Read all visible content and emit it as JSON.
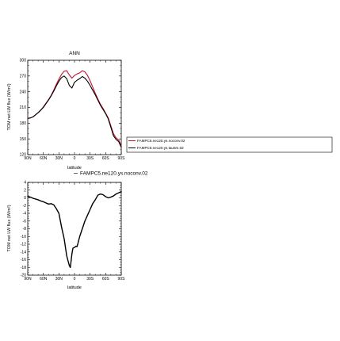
{
  "chart_data": [
    {
      "type": "line",
      "title": "ANN",
      "xlabel": "latitude",
      "ylabel": "TOM net LW flux (W/m²)",
      "xlim": [
        -90,
        90
      ],
      "ylim": [
        120,
        300
      ],
      "xticks": [
        -90,
        -60,
        -30,
        0,
        30,
        60,
        90
      ],
      "xticklabels": [
        "90N",
        "60N",
        "30N",
        "0",
        "30S",
        "60S",
        "90S"
      ],
      "yticks": [
        120,
        150,
        180,
        210,
        240,
        270,
        300
      ],
      "grid": false,
      "legend_position": "right",
      "legend": [
        "FAMPC5.ne120.ys.noconv.02",
        "FAMPC5.ne120.ys.tau5m.02"
      ],
      "series": [
        {
          "name": "FAMPC5.ne120.ys.noconv.02",
          "color": "#c8102e",
          "x": [
            -90,
            -85,
            -80,
            -75,
            -70,
            -65,
            -60,
            -55,
            -50,
            -45,
            -40,
            -35,
            -30,
            -25,
            -20,
            -15,
            -10,
            -5,
            0,
            5,
            10,
            15,
            20,
            25,
            30,
            35,
            40,
            45,
            50,
            55,
            60,
            65,
            70,
            75,
            80,
            85,
            90
          ],
          "y": [
            189,
            190,
            192,
            196,
            200,
            205,
            211,
            218,
            225,
            233,
            243,
            254,
            264,
            273,
            279,
            280,
            272,
            266,
            271,
            274,
            276,
            280,
            278,
            271,
            261,
            249,
            237,
            226,
            216,
            208,
            199,
            190,
            175,
            160,
            152,
            148,
            137
          ]
        },
        {
          "name": "FAMPC5.ne120.ys.tau5m.02",
          "color": "#000000",
          "x": [
            -90,
            -85,
            -80,
            -75,
            -70,
            -65,
            -60,
            -55,
            -50,
            -45,
            -40,
            -35,
            -30,
            -25,
            -20,
            -15,
            -10,
            -5,
            0,
            5,
            10,
            15,
            20,
            25,
            30,
            35,
            40,
            45,
            50,
            55,
            60,
            65,
            70,
            75,
            80,
            85,
            90
          ],
          "y": [
            189,
            190,
            192,
            196,
            200,
            205,
            210,
            217,
            224,
            232,
            241,
            251,
            260,
            267,
            270,
            265,
            252,
            247,
            258,
            262,
            265,
            269,
            266,
            260,
            252,
            243,
            234,
            224,
            214,
            206,
            198,
            188,
            172,
            156,
            149,
            145,
            134
          ]
        }
      ]
    },
    {
      "type": "line",
      "title": "FAMPC5.ne120.ys.noconv.02",
      "xlabel": "latitude",
      "ylabel": "TOM net LW flux (W/m²)",
      "xlim": [
        -90,
        90
      ],
      "ylim": [
        -20,
        4
      ],
      "xticks": [
        -90,
        -60,
        -30,
        0,
        30,
        60,
        90
      ],
      "xticklabels": [
        "90N",
        "60N",
        "30N",
        "0",
        "30S",
        "60S",
        "90S"
      ],
      "yticks": [
        -20,
        -18,
        -16,
        -14,
        -12,
        -10,
        -8,
        -6,
        -4,
        -2,
        0,
        2,
        4
      ],
      "grid": false,
      "series": [
        {
          "name": "",
          "color": "#000000",
          "x": [
            -90,
            -85,
            -80,
            -75,
            -70,
            -65,
            -60,
            -55,
            -50,
            -45,
            -40,
            -35,
            -30,
            -25,
            -20,
            -15,
            -10,
            -8,
            -5,
            -3,
            0,
            3,
            5,
            10,
            15,
            20,
            25,
            30,
            35,
            40,
            45,
            50,
            55,
            60,
            65,
            70,
            75,
            80,
            85,
            90
          ],
          "y": [
            0.4,
            0.2,
            -0.1,
            -0.3,
            -0.5,
            -0.8,
            -1.0,
            -1.3,
            -1.6,
            -1.5,
            -1.8,
            -2.8,
            -4.0,
            -7.5,
            -10.5,
            -15.0,
            -17.5,
            -18.0,
            -14.5,
            -13.0,
            -12.8,
            -12.5,
            -12.6,
            -10.0,
            -8.0,
            -6.0,
            -4.5,
            -3.0,
            -1.5,
            -0.5,
            0.7,
            1.0,
            0.8,
            0.3,
            0.0,
            0.2,
            0.5,
            1.0,
            1.3,
            1.6
          ]
        }
      ]
    }
  ]
}
